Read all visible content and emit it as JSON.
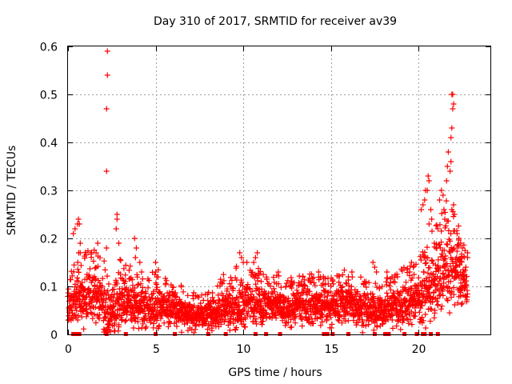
{
  "chart_data": {
    "type": "scatter",
    "title": "Day 310 of 2017, SRMTID for receiver av39",
    "xlabel": "GPS time / hours",
    "ylabel": "SRMTID / TECUs",
    "xlim": [
      0,
      24.1
    ],
    "ylim": [
      0,
      0.6
    ],
    "xticks": [
      0,
      5,
      10,
      15,
      20
    ],
    "xtick_labels": [
      "0",
      "5",
      "10",
      "15",
      "20"
    ],
    "yticks": [
      0,
      0.1,
      0.2,
      0.3,
      0.4,
      0.5,
      0.6
    ],
    "ytick_labels": [
      "0",
      "0.1",
      "0.2",
      "0.3",
      "0.4",
      "0.5",
      "0.6"
    ],
    "grid": true,
    "marker": "plus",
    "color": "#ff0000",
    "series": [
      {
        "name": "SRMTID",
        "envelope_note": "base level (x, y) then upper spread (x, y) used to render dense cloud",
        "x": [
          0.0,
          0.3,
          0.6,
          1.0,
          1.5,
          2.0,
          2.3,
          2.8,
          3.2,
          3.8,
          4.2,
          5.0,
          5.5,
          6.0,
          6.5,
          7.0,
          7.5,
          8.0,
          8.5,
          9.0,
          9.5,
          10.0,
          10.5,
          11.0,
          11.5,
          12.0,
          12.5,
          13.0,
          13.5,
          14.0,
          14.5,
          15.0,
          15.5,
          16.0,
          16.5,
          17.0,
          17.5,
          18.0,
          18.5,
          19.0,
          19.5,
          20.0,
          20.3,
          20.6,
          20.9,
          21.2,
          21.5,
          21.8,
          22.1,
          22.4,
          22.8
        ],
        "base": [
          0.06,
          0.07,
          0.08,
          0.08,
          0.09,
          0.07,
          0.04,
          0.06,
          0.07,
          0.06,
          0.05,
          0.06,
          0.06,
          0.06,
          0.05,
          0.04,
          0.04,
          0.04,
          0.05,
          0.06,
          0.06,
          0.06,
          0.07,
          0.06,
          0.06,
          0.06,
          0.05,
          0.06,
          0.06,
          0.06,
          0.06,
          0.06,
          0.06,
          0.07,
          0.06,
          0.05,
          0.05,
          0.05,
          0.06,
          0.06,
          0.07,
          0.08,
          0.08,
          0.09,
          0.1,
          0.12,
          0.13,
          0.14,
          0.13,
          0.12,
          0.1
        ],
        "spread": [
          0.04,
          0.05,
          0.07,
          0.06,
          0.06,
          0.06,
          0.05,
          0.07,
          0.05,
          0.05,
          0.04,
          0.05,
          0.04,
          0.04,
          0.04,
          0.03,
          0.03,
          0.03,
          0.04,
          0.05,
          0.05,
          0.06,
          0.05,
          0.05,
          0.04,
          0.04,
          0.04,
          0.04,
          0.04,
          0.05,
          0.04,
          0.04,
          0.04,
          0.05,
          0.04,
          0.04,
          0.04,
          0.04,
          0.04,
          0.05,
          0.05,
          0.05,
          0.06,
          0.07,
          0.08,
          0.08,
          0.09,
          0.1,
          0.07,
          0.06,
          0.05
        ],
        "highlights": [
          [
            2.25,
            0.59
          ],
          [
            2.25,
            0.54
          ],
          [
            2.2,
            0.47
          ],
          [
            2.2,
            0.34
          ],
          [
            2.2,
            0.18
          ],
          [
            2.8,
            0.25
          ],
          [
            2.8,
            0.24
          ],
          [
            2.75,
            0.22
          ],
          [
            2.9,
            0.19
          ],
          [
            0.6,
            0.24
          ],
          [
            0.65,
            0.23
          ],
          [
            0.55,
            0.23
          ],
          [
            0.7,
            0.19
          ],
          [
            0.7,
            0.17
          ],
          [
            0.4,
            0.22
          ],
          [
            0.3,
            0.21
          ],
          [
            1.7,
            0.19
          ],
          [
            1.6,
            0.17
          ],
          [
            3.8,
            0.2
          ],
          [
            3.9,
            0.18
          ],
          [
            3.85,
            0.16
          ],
          [
            4.1,
            0.15
          ],
          [
            4.2,
            0.13
          ],
          [
            5.0,
            0.15
          ],
          [
            5.0,
            0.13
          ],
          [
            9.8,
            0.17
          ],
          [
            9.9,
            0.16
          ],
          [
            10.0,
            0.15
          ],
          [
            10.8,
            0.17
          ],
          [
            10.7,
            0.16
          ],
          [
            10.6,
            0.15
          ],
          [
            12.0,
            0.13
          ],
          [
            14.3,
            0.13
          ],
          [
            14.4,
            0.12
          ],
          [
            16.2,
            0.13
          ],
          [
            16.0,
            0.12
          ],
          [
            17.0,
            0.11
          ],
          [
            17.4,
            0.15
          ],
          [
            17.5,
            0.14
          ],
          [
            17.6,
            0.13
          ],
          [
            18.2,
            0.13
          ],
          [
            18.8,
            0.12
          ],
          [
            19.6,
            0.15
          ],
          [
            19.7,
            0.14
          ],
          [
            19.5,
            0.13
          ],
          [
            20.15,
            0.26
          ],
          [
            20.25,
            0.27
          ],
          [
            20.35,
            0.28
          ],
          [
            20.4,
            0.3
          ],
          [
            20.5,
            0.3
          ],
          [
            20.6,
            0.32
          ],
          [
            20.55,
            0.33
          ],
          [
            20.7,
            0.26
          ],
          [
            20.75,
            0.24
          ],
          [
            20.6,
            0.23
          ],
          [
            20.9,
            0.19
          ],
          [
            21.0,
            0.18
          ],
          [
            21.1,
            0.22
          ],
          [
            21.2,
            0.28
          ],
          [
            21.3,
            0.3
          ],
          [
            21.4,
            0.29
          ],
          [
            21.45,
            0.26
          ],
          [
            21.5,
            0.24
          ],
          [
            21.6,
            0.32
          ],
          [
            21.65,
            0.35
          ],
          [
            21.7,
            0.38
          ],
          [
            21.8,
            0.34
          ],
          [
            21.85,
            0.41
          ],
          [
            21.9,
            0.43
          ],
          [
            21.95,
            0.47
          ],
          [
            21.9,
            0.5
          ],
          [
            21.95,
            0.5
          ],
          [
            22.0,
            0.48
          ],
          [
            21.85,
            0.36
          ],
          [
            22.0,
            0.27
          ],
          [
            22.05,
            0.25
          ],
          [
            21.9,
            0.26
          ],
          [
            22.2,
            0.21
          ],
          [
            22.3,
            0.2
          ],
          [
            22.4,
            0.19
          ],
          [
            22.5,
            0.18
          ],
          [
            22.6,
            0.16
          ],
          [
            22.7,
            0.14
          ],
          [
            22.8,
            0.17
          ],
          [
            22.8,
            0.16
          ],
          [
            22.6,
            0.13
          ],
          [
            22.5,
            0.1
          ],
          [
            22.4,
            0.08
          ]
        ],
        "zeros": [
          0.3,
          0.45,
          0.55,
          0.65,
          2.2,
          3.3,
          5.0,
          6.1,
          8.0,
          9.0,
          10.7,
          11.3,
          12.1,
          14.6,
          14.8,
          15.1,
          16.0,
          17.5,
          18.1,
          18.3,
          19.2,
          19.9,
          20.25,
          20.35,
          20.7,
          21.1
        ]
      }
    ]
  }
}
